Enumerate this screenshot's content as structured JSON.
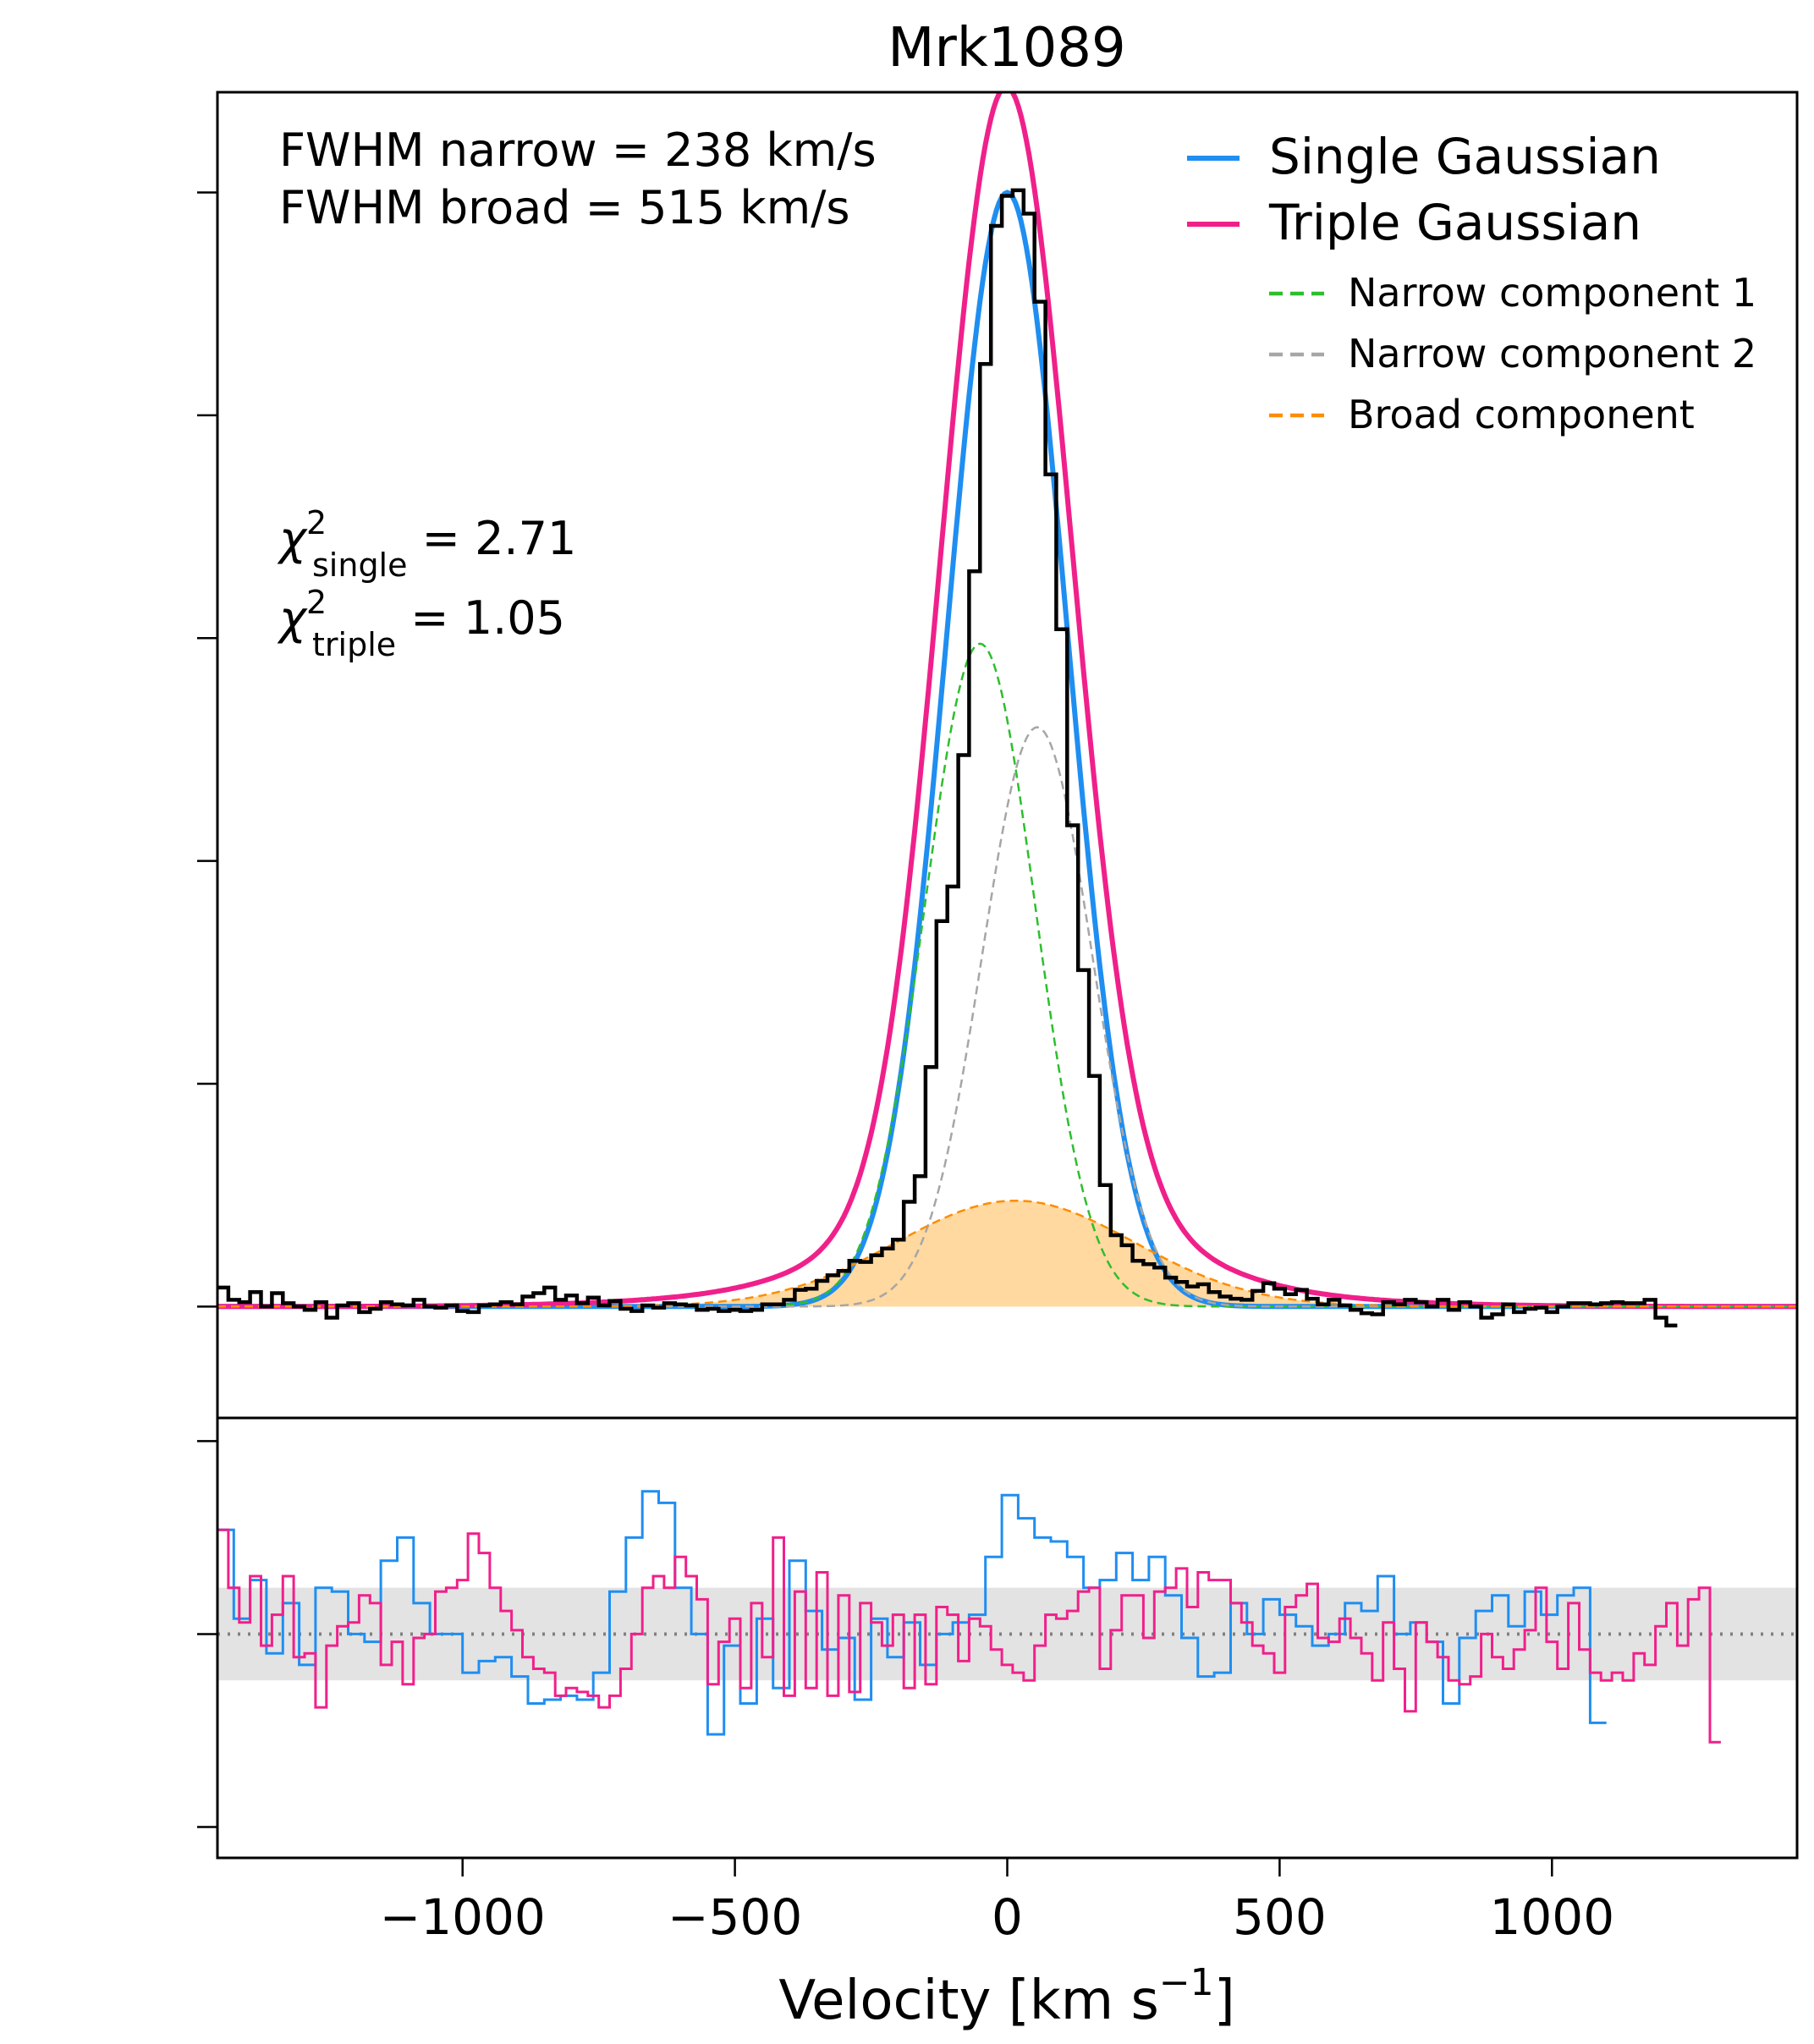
{
  "chart_data": [
    {
      "panel": "main",
      "type": "line",
      "title": "Mrk1089",
      "xlabel": "Velocity [km s",
      "xlabel_exponent": "−1",
      "xlabel_close": "]",
      "xlim": [
        -1450,
        1450
      ],
      "ylim": [
        -0.1,
        1.09
      ],
      "yticks": [
        0,
        0.2,
        0.4,
        0.6,
        0.8,
        1.0
      ],
      "ytick_labels_shown": false,
      "annotations": {
        "fwhm_narrow": "FWHM narrow = 238 km/s",
        "fwhm_broad": "FWHM broad = 515 km/s",
        "chi_symbol": "χ",
        "chi_sup": "2",
        "chi_single_sub": "single",
        "chi_single_value": " = 2.71",
        "chi_triple_sub": "triple",
        "chi_triple_value": " = 1.05"
      },
      "legend_position": "upper right",
      "legend": [
        {
          "label": "Single Gaussian",
          "color": "#1f8ef1",
          "style": "solid"
        },
        {
          "label": "Triple Gaussian",
          "color": "#f0208a",
          "style": "solid"
        },
        {
          "label": "Narrow component 1",
          "color": "#2dbe2d",
          "style": "dashed"
        },
        {
          "label": "Narrow component 2",
          "color": "#a6a6a6",
          "style": "dashed"
        },
        {
          "label": "Broad component",
          "color": "#ff8c00",
          "style": "dashed"
        }
      ],
      "models": {
        "narrow1": {
          "amp": 0.595,
          "center": -50,
          "fwhm": 238
        },
        "narrow2": {
          "amp": 0.52,
          "center": 55,
          "fwhm": 238
        },
        "broad": {
          "amp": 0.095,
          "center": 15,
          "fwhm": 515
        },
        "single": {
          "amp": 1.0,
          "center": 0,
          "fwhm": 260
        },
        "wings_amp": 0.025,
        "wings_fwhm": 900
      },
      "data_series": {
        "name": "Observed spectrum",
        "color": "#000000",
        "style": "steps",
        "bin_width": 20,
        "bin_start": -1450,
        "values": [
          0.017,
          0.006,
          0.004,
          0.013,
          0.0,
          0.012,
          0.003,
          0.0,
          -0.003,
          0.004,
          -0.01,
          0.001,
          0.003,
          -0.005,
          -0.002,
          0.004,
          0.002,
          0.001,
          0.006,
          0.0,
          -0.001,
          0.001,
          -0.004,
          -0.005,
          0.001,
          0.002,
          0.004,
          0.002,
          0.009,
          0.012,
          0.017,
          0.006,
          0.01,
          0.003,
          0.008,
          0.001,
          0.005,
          -0.002,
          -0.004,
          0.001,
          -0.001,
          0.003,
          0.002,
          0.001,
          -0.003,
          -0.002,
          -0.004,
          -0.003,
          -0.004,
          -0.003,
          0.002,
          0.002,
          0.006,
          0.015,
          0.016,
          0.023,
          0.028,
          0.032,
          0.041,
          0.04,
          0.046,
          0.052,
          0.06,
          0.094,
          0.117,
          0.215,
          0.346,
          0.377,
          0.495,
          0.66,
          0.846,
          0.97,
          0.997,
          1.002,
          0.981,
          0.902,
          0.747,
          0.608,
          0.432,
          0.302,
          0.207,
          0.109,
          0.064,
          0.055,
          0.041,
          0.038,
          0.035,
          0.026,
          0.022,
          0.018,
          0.02,
          0.013,
          0.009,
          0.007,
          0.006,
          0.014,
          0.021,
          0.016,
          0.011,
          0.015,
          0.007,
          0.002,
          0.006,
          0.001,
          -0.003,
          -0.006,
          -0.007,
          0.004,
          0.002,
          0.006,
          0.004,
          0.0,
          0.006,
          -0.003,
          0.004,
          0.0,
          -0.01,
          -0.007,
          0.002,
          -0.005,
          -0.002,
          -0.001,
          -0.005,
          0.0,
          0.003,
          0.003,
          0.002,
          0.003,
          0.004,
          0.003,
          0.003,
          0.006,
          -0.01,
          -0.017
        ]
      }
    },
    {
      "panel": "residuals",
      "type": "line",
      "xlim": [
        -1450,
        1450
      ],
      "ylim": [
        -5.8,
        5.6
      ],
      "yticks": [
        -5,
        0,
        5
      ],
      "ytick_labels_shown": false,
      "xticks": [
        -1000,
        -500,
        0,
        500,
        1000
      ],
      "xtick_labels": [
        "−1000",
        "−500",
        "0",
        "500",
        "1000"
      ],
      "reference_line": 0,
      "band": [
        -1.2,
        1.2
      ],
      "band_color": "#e3e3e3",
      "series": [
        {
          "name": "Single Gaussian residual",
          "color": "#1f8ef1",
          "bin_width": 30,
          "bin_start": -1450,
          "values": [
            2.7,
            0.4,
            1.4,
            -0.5,
            0.8,
            -0.8,
            1.2,
            1.1,
            0.0,
            -0.2,
            1.9,
            2.5,
            0.8,
            0.0,
            0.0,
            -1.0,
            -0.7,
            -0.6,
            -1.1,
            -1.8,
            -1.7,
            -1.6,
            -1.7,
            -1.0,
            1.1,
            2.5,
            3.7,
            3.4,
            1.2,
            0.0,
            -2.6,
            -0.3,
            -1.8,
            0.4,
            -1.4,
            1.9,
            0.6,
            -0.4,
            -0.1,
            -1.7,
            0.4,
            -0.6,
            0.3,
            -0.8,
            0.0,
            0.3,
            0.5,
            2.0,
            3.6,
            3.0,
            2.5,
            2.4,
            2.0,
            1.2,
            1.4,
            2.1,
            1.4,
            2.0,
            1.0,
            -0.1,
            -1.1,
            -1.0,
            0.8,
            0.0,
            0.9,
            0.5,
            0.2,
            -0.3,
            0.0,
            0.8,
            0.6,
            1.5,
            0.0,
            0.3,
            -0.2,
            -1.8,
            -0.1,
            0.6,
            1.0,
            0.2,
            1.1,
            0.5,
            1.0,
            1.2,
            -2.3
          ]
        },
        {
          "name": "Triple Gaussian residual",
          "color": "#f0208a",
          "bin_width": 20,
          "bin_start": -1450,
          "values": [
            2.7,
            1.2,
            0.3,
            1.5,
            -0.3,
            0.5,
            1.5,
            -0.6,
            -0.5,
            -1.9,
            -0.3,
            0.2,
            0.3,
            1.0,
            0.8,
            -0.8,
            -0.2,
            -1.3,
            -0.1,
            0.0,
            1.1,
            1.2,
            1.4,
            2.6,
            2.1,
            1.2,
            0.6,
            0.1,
            -0.6,
            -0.9,
            -1.0,
            -1.6,
            -1.4,
            -1.5,
            -1.6,
            -1.9,
            -1.6,
            -0.9,
            0.0,
            1.2,
            1.5,
            1.2,
            2.0,
            1.5,
            0.9,
            -1.3,
            -0.2,
            0.4,
            -1.4,
            0.8,
            -0.6,
            2.5,
            -1.6,
            1.1,
            -1.4,
            1.6,
            -1.6,
            1.0,
            -1.5,
            0.8,
            0.3,
            -0.3,
            0.5,
            -1.4,
            0.5,
            -1.3,
            0.7,
            0.5,
            -0.7,
            0.4,
            0.2,
            -0.4,
            -0.8,
            -1.0,
            -1.2,
            -0.3,
            0.5,
            0.4,
            0.6,
            1.1,
            1.2,
            -0.9,
            0.1,
            1.0,
            1.0,
            -0.1,
            1.1,
            1.2,
            1.7,
            0.7,
            1.6,
            1.4,
            1.4,
            0.8,
            0.3,
            -0.3,
            -0.5,
            -1.0,
            0.7,
            1.0,
            1.3,
            -0.1,
            -0.2,
            0.4,
            -0.1,
            -0.5,
            -1.2,
            0.3,
            -0.9,
            -2.0,
            0.3,
            -0.2,
            -0.6,
            -1.2,
            -1.3,
            -1.1,
            0.0,
            -0.6,
            -0.9,
            -0.4,
            0.1,
            1.2,
            -0.2,
            -0.9,
            0.8,
            -0.4,
            -1.0,
            -1.2,
            -1.0,
            -1.2,
            -0.5,
            -0.8,
            0.2,
            0.8,
            -0.3,
            0.9,
            1.2,
            -2.8
          ]
        }
      ]
    }
  ]
}
